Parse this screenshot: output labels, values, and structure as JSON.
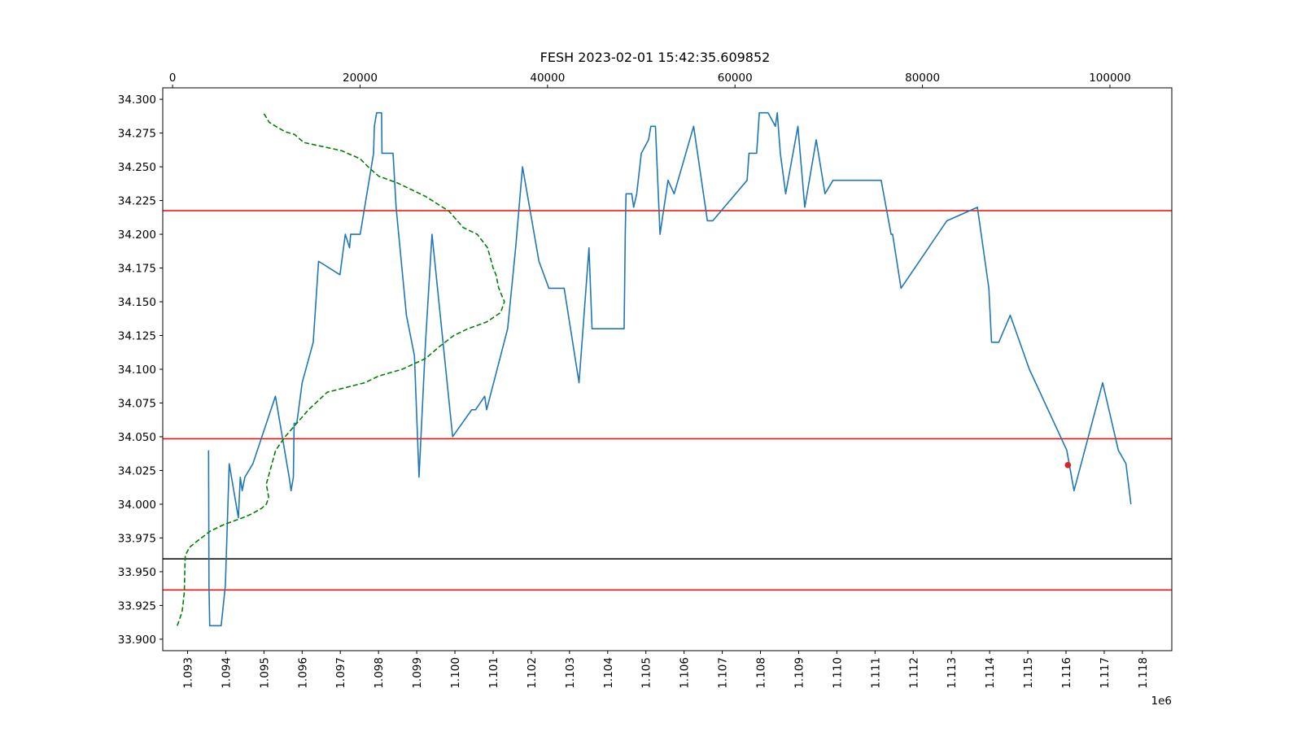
{
  "chart_data": {
    "type": "line",
    "title": "FESH 2023-02-01 15:42:35.609852",
    "x_bottom": {
      "label": "",
      "offset_text": "1e6",
      "lim": [
        1092350,
        1118770
      ],
      "ticks": [
        1093000,
        1094000,
        1095000,
        1096000,
        1097000,
        1098000,
        1099000,
        1100000,
        1101000,
        1102000,
        1103000,
        1104000,
        1105000,
        1106000,
        1107000,
        1108000,
        1109000,
        1110000,
        1111000,
        1112000,
        1113000,
        1114000,
        1115000,
        1116000,
        1117000,
        1118000
      ],
      "tick_labels": [
        "1.093",
        "1.094",
        "1.095",
        "1.096",
        "1.097",
        "1.098",
        "1.099",
        "1.100",
        "1.101",
        "1.102",
        "1.103",
        "1.104",
        "1.105",
        "1.106",
        "1.107",
        "1.108",
        "1.109",
        "1.110",
        "1.111",
        "1.112",
        "1.113",
        "1.114",
        "1.115",
        "1.116",
        "1.117",
        "1.118"
      ]
    },
    "x_top": {
      "label": "",
      "lim": [
        -1050,
        106600
      ],
      "ticks": [
        0,
        20000,
        40000,
        60000,
        80000,
        100000
      ],
      "tick_labels": [
        "0",
        "20000",
        "40000",
        "60000",
        "80000",
        "100000"
      ]
    },
    "y": {
      "label": "",
      "lim": [
        33.8915,
        34.3085
      ],
      "ticks": [
        33.9,
        33.925,
        33.95,
        33.975,
        34.0,
        34.025,
        34.05,
        34.075,
        34.1,
        34.125,
        34.15,
        34.175,
        34.2,
        34.225,
        34.25,
        34.275,
        34.3
      ],
      "tick_labels": [
        "33.900",
        "33.925",
        "33.950",
        "33.975",
        "34.000",
        "34.025",
        "34.050",
        "34.075",
        "34.100",
        "34.125",
        "34.150",
        "34.175",
        "34.200",
        "34.225",
        "34.250",
        "34.275",
        "34.300"
      ]
    },
    "grid": false,
    "series": [
      {
        "style": "solid",
        "color": "#1f77b4",
        "axis": "bottom",
        "x": [
          1093550,
          1093560,
          1093580,
          1093880,
          1093990,
          1094090,
          1094330,
          1094380,
          1094430,
          1094500,
          1094710,
          1095300,
          1095660,
          1095710,
          1095770,
          1095790,
          1095860,
          1096000,
          1096290,
          1096430,
          1096990,
          1097130,
          1097240,
          1097270,
          1097520,
          1097870,
          1097890,
          1097950,
          1098080,
          1098090,
          1098380,
          1098460,
          1098730,
          1098940,
          1099060,
          1099230,
          1099400,
          1099940,
          1100440,
          1100540,
          1100780,
          1100830,
          1101380,
          1101590,
          1101770,
          1102200,
          1102460,
          1102860,
          1103250,
          1103510,
          1103590,
          1104430,
          1104460,
          1104480,
          1104630,
          1104680,
          1104760,
          1104800,
          1104880,
          1105070,
          1105130,
          1105250,
          1105370,
          1105580,
          1105740,
          1106250,
          1106610,
          1106750,
          1107650,
          1107700,
          1107900,
          1107970,
          1108200,
          1108390,
          1108440,
          1108520,
          1108660,
          1108980,
          1109160,
          1109460,
          1109690,
          1109900,
          1110130,
          1111160,
          1111420,
          1111460,
          1111680,
          1112880,
          1113680,
          1113980,
          1114050,
          1114240,
          1114540,
          1115040,
          1116020,
          1116210,
          1116960,
          1117370,
          1117570,
          1117700
        ],
        "y": [
          34.04,
          33.94,
          33.91,
          33.91,
          33.94,
          34.03,
          33.99,
          34.02,
          34.01,
          34.02,
          34.03,
          34.08,
          34.02,
          34.01,
          34.02,
          34.06,
          34.06,
          34.09,
          34.12,
          34.18,
          34.17,
          34.2,
          34.19,
          34.2,
          34.2,
          34.26,
          34.28,
          34.29,
          34.29,
          34.26,
          34.26,
          34.22,
          34.14,
          34.11,
          34.02,
          34.12,
          34.2,
          34.05,
          34.07,
          34.07,
          34.08,
          34.07,
          34.13,
          34.19,
          34.25,
          34.18,
          34.16,
          34.16,
          34.09,
          34.19,
          34.13,
          34.13,
          34.2,
          34.23,
          34.23,
          34.22,
          34.23,
          34.24,
          34.26,
          34.27,
          34.28,
          34.28,
          34.2,
          34.24,
          34.23,
          34.28,
          34.21,
          34.21,
          34.24,
          34.26,
          34.26,
          34.29,
          34.29,
          34.28,
          34.29,
          34.26,
          34.23,
          34.28,
          34.22,
          34.27,
          34.23,
          34.24,
          34.24,
          34.24,
          34.2,
          34.2,
          34.16,
          34.21,
          34.22,
          34.16,
          34.12,
          34.12,
          34.14,
          34.1,
          34.04,
          34.01,
          34.09,
          34.04,
          34.03,
          34.0
        ]
      },
      {
        "style": "dashed",
        "color": "#008000",
        "axis": "top",
        "x": [
          500,
          1000,
          1100,
          1250,
          1300,
          1350,
          1800,
          2500,
          4000,
          5500,
          7500,
          8500,
          9500,
          10000,
          10250,
          10000,
          10400,
          11000,
          12000,
          13000,
          14500,
          16500,
          20500,
          22000,
          24500,
          27000,
          28500,
          30000,
          31500,
          33500,
          35000,
          35400,
          34800,
          34500,
          34200,
          33600,
          32500,
          31000,
          29500,
          27000,
          24000,
          22000,
          21000,
          20000,
          18000,
          14000,
          13000,
          12000,
          11000,
          10300,
          9700,
          9800
        ],
        "y": [
          33.91,
          33.92,
          33.925,
          33.935,
          33.95,
          33.962,
          33.968,
          33.972,
          33.98,
          33.985,
          33.99,
          33.993,
          33.997,
          34.0,
          34.005,
          34.015,
          34.025,
          34.04,
          34.05,
          34.058,
          34.07,
          34.083,
          34.09,
          34.095,
          34.1,
          34.108,
          34.117,
          34.125,
          34.13,
          34.135,
          34.142,
          34.15,
          34.16,
          34.17,
          34.175,
          34.19,
          34.2,
          34.205,
          34.217,
          34.228,
          34.238,
          34.243,
          34.249,
          34.256,
          34.262,
          34.268,
          34.274,
          34.276,
          34.28,
          34.283,
          34.29,
          34.29
        ]
      }
    ],
    "hlines": [
      {
        "y": 34.2175,
        "color": "#ff0000"
      },
      {
        "y": 34.0485,
        "color": "#ff0000"
      },
      {
        "y": 33.9595,
        "color": "#000000"
      },
      {
        "y": 33.9365,
        "color": "#ff0000"
      }
    ],
    "markers": [
      {
        "x": 1116050,
        "y": 34.029,
        "color": "#d62728"
      }
    ]
  }
}
